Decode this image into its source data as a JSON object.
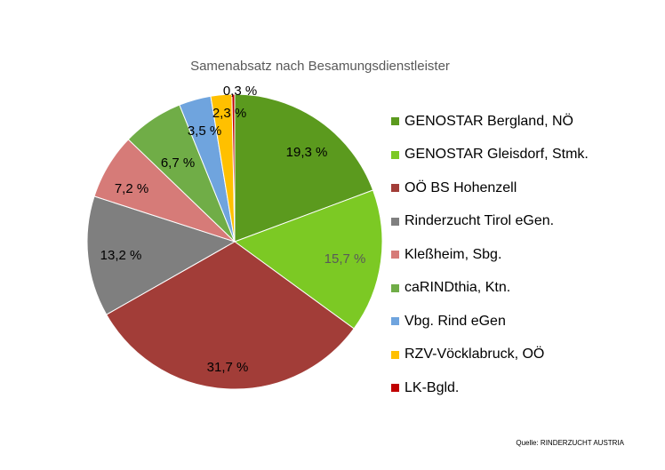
{
  "chart_data": {
    "type": "pie",
    "title": "Samenabsatz nach Besamungsdienstleister",
    "categories": [
      "GENOSTAR Bergland, NÖ",
      "GENOSTAR Gleisdorf, Stmk.",
      "OÖ BS Hohenzell",
      "Rinderzucht Tirol eGen.",
      "Kleßheim, Sbg.",
      "caRINDthia, Ktn.",
      "Vbg. Rind eGen",
      "RZV-Vöcklabruck, OÖ",
      "LK-Bgld."
    ],
    "values": [
      19.3,
      15.7,
      31.7,
      13.2,
      7.2,
      6.7,
      3.5,
      2.3,
      0.3
    ],
    "labels": [
      "19,3 %",
      "15,7 %",
      "31,7 %",
      "13,2 %",
      "7,2 %",
      "6,7 %",
      "3,5 %",
      "2,3 %",
      "0,3 %"
    ],
    "colors": [
      "#5B9A1E",
      "#7CC924",
      "#A23D38",
      "#7F7F7F",
      "#D67B78",
      "#70AD47",
      "#6FA4DE",
      "#FFC000",
      "#C00000"
    ],
    "label_colors": [
      "#000000",
      "#595959",
      "#000000",
      "#000000",
      "#000000",
      "#000000",
      "#000000",
      "#000000",
      "#000000"
    ],
    "legend_position": "right",
    "start_angle": "12 o'clock",
    "direction": "clockwise"
  },
  "source": "Quelle: RINDERZUCHT AUSTRIA"
}
